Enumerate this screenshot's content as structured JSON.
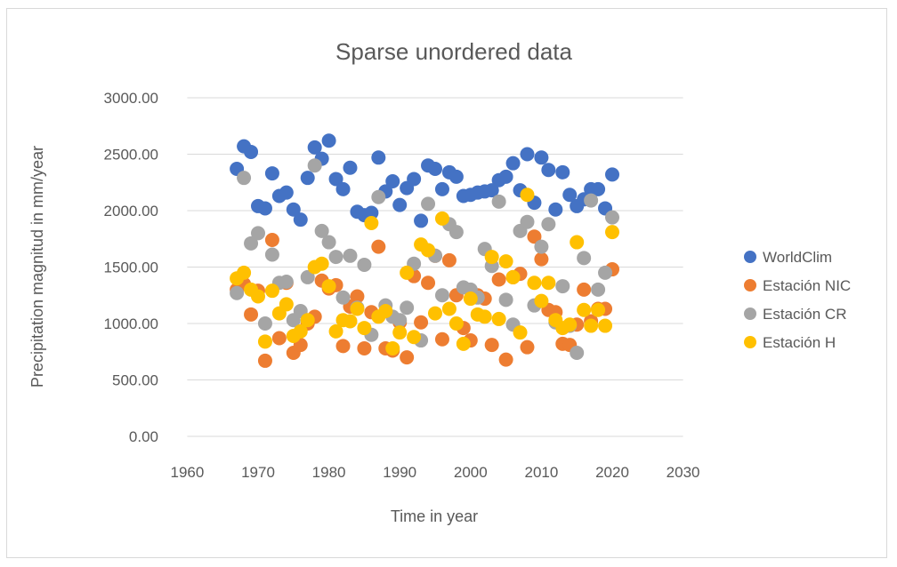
{
  "chart_data": {
    "type": "scatter",
    "title": "Sparse unordered data",
    "xlabel": "Time in year",
    "ylabel": "Precipitation magnitud in mm/year",
    "xlim": [
      1960,
      2030
    ],
    "ylim": [
      0,
      3000
    ],
    "xticks": [
      "1960",
      "1970",
      "1980",
      "1990",
      "2000",
      "2010",
      "2020",
      "2030"
    ],
    "yticks": [
      "0.00",
      "500.00",
      "1000.00",
      "1500.00",
      "2000.00",
      "2500.00",
      "3000.00"
    ],
    "grid": true,
    "legend": "right",
    "x_start": 1967,
    "series": [
      {
        "name": "WorldClim",
        "color": "#4472C4",
        "values": [
          2370,
          2570,
          2520,
          2040,
          2020,
          2330,
          2130,
          2160,
          2010,
          1920,
          2290,
          2560,
          2460,
          2620,
          2280,
          2190,
          2380,
          1990,
          1960,
          1980,
          2470,
          2170,
          2260,
          2050,
          2200,
          2280,
          1910,
          2400,
          2370,
          2190,
          2340,
          2300,
          2130,
          2140,
          2160,
          2170,
          2180,
          2270,
          2300,
          2420,
          2180,
          2500,
          2070,
          2470,
          2360,
          2010,
          2340,
          2140,
          2040,
          2100,
          2190,
          2190,
          2020,
          2320
        ]
      },
      {
        "name": "Estación NIC",
        "color": "#ED7D31",
        "values": [
          1300,
          1350,
          1080,
          1290,
          670,
          1740,
          870,
          1360,
          740,
          810,
          1000,
          1060,
          1380,
          1310,
          1340,
          800,
          1150,
          1240,
          780,
          1100,
          1680,
          780,
          760,
          1010,
          700,
          1420,
          1010,
          1360,
          1600,
          860,
          1560,
          1250,
          960,
          850,
          1250,
          1220,
          810,
          1390,
          680,
          1410,
          1440,
          790,
          1770,
          1570,
          1120,
          1100,
          820,
          810,
          990,
          1300,
          1020,
          1130,
          1130,
          1480
        ]
      },
      {
        "name": "Estación CR",
        "color": "#A5A5A5",
        "values": [
          1270,
          2290,
          1710,
          1800,
          1000,
          1610,
          1360,
          1370,
          1030,
          1110,
          1410,
          2400,
          1820,
          1720,
          1590,
          1230,
          1600,
          1140,
          1520,
          900,
          2120,
          1160,
          1060,
          1030,
          1140,
          1530,
          850,
          2060,
          1600,
          1250,
          1880,
          1810,
          1320,
          1300,
          1230,
          1660,
          1510,
          2080,
          1210,
          990,
          1820,
          1900,
          1160,
          1680,
          1880,
          1010,
          1330,
          980,
          740,
          1580,
          2090,
          1300,
          1450,
          1940
        ]
      },
      {
        "name": "Estación H",
        "color": "#FFC000",
        "values": [
          1400,
          1450,
          1300,
          1240,
          840,
          1290,
          1090,
          1170,
          890,
          930,
          1030,
          1500,
          1530,
          1330,
          930,
          1030,
          1020,
          1130,
          960,
          1890,
          1060,
          1110,
          780,
          920,
          1450,
          880,
          1700,
          1650,
          1090,
          1930,
          1130,
          1000,
          820,
          1220,
          1080,
          1060,
          1590,
          1040,
          1550,
          1410,
          920,
          2140,
          1360,
          1200,
          1360,
          1030,
          960,
          990,
          1720,
          1120,
          980,
          1120,
          980,
          1810
        ]
      }
    ]
  }
}
